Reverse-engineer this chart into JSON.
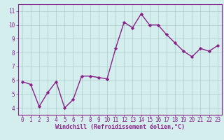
{
  "x": [
    0,
    1,
    2,
    3,
    4,
    5,
    6,
    7,
    8,
    9,
    10,
    11,
    12,
    13,
    14,
    15,
    16,
    17,
    18,
    19,
    20,
    21,
    22,
    23
  ],
  "y": [
    5.9,
    5.7,
    4.1,
    5.1,
    5.9,
    4.0,
    4.6,
    6.3,
    6.3,
    6.2,
    6.1,
    8.3,
    10.2,
    9.8,
    10.8,
    10.0,
    10.0,
    9.3,
    8.7,
    8.1,
    7.7,
    8.3,
    8.1,
    8.5
  ],
  "line_color": "#882288",
  "marker": "D",
  "marker_size": 2.2,
  "line_width": 1.0,
  "bg_color": "#d4eeee",
  "grid_color": "#aacccc",
  "xlabel": "Windchill (Refroidissement éolien,°C)",
  "ylim": [
    3.5,
    11.5
  ],
  "xlim": [
    -0.5,
    23.5
  ],
  "yticks": [
    4,
    5,
    6,
    7,
    8,
    9,
    10,
    11
  ],
  "xticks": [
    0,
    1,
    2,
    3,
    4,
    5,
    6,
    7,
    8,
    9,
    10,
    11,
    12,
    13,
    14,
    15,
    16,
    17,
    18,
    19,
    20,
    21,
    22,
    23
  ],
  "tick_color": "#882288",
  "label_color": "#882288",
  "label_fontsize": 6.0,
  "tick_fontsize": 5.5
}
